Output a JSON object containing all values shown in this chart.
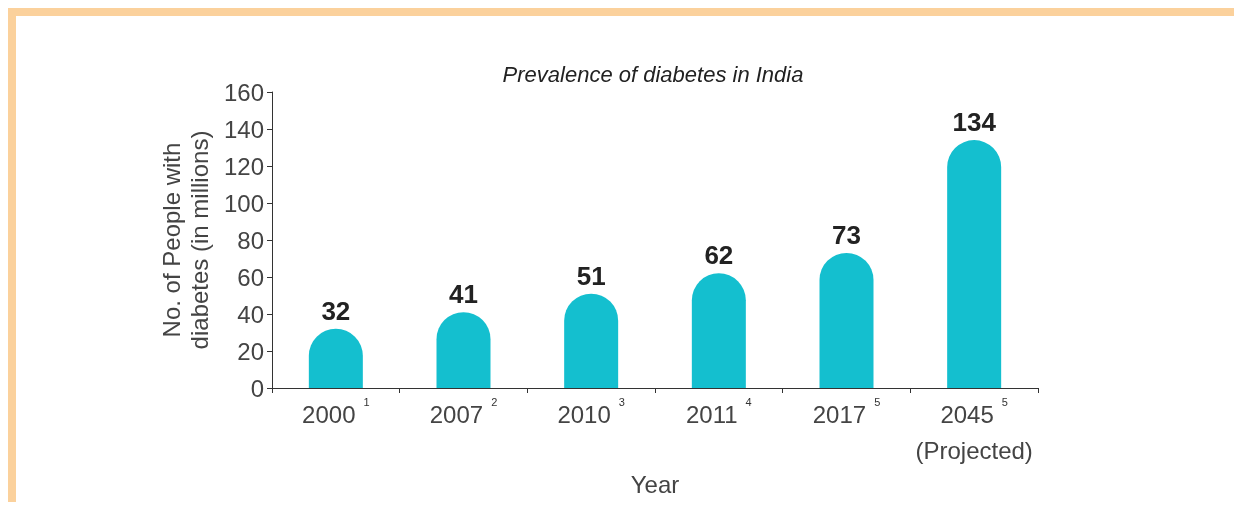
{
  "chart_data": {
    "type": "bar",
    "title": "Prevalence of diabetes in India",
    "categories": [
      "2000$^{1}$",
      "2007$^{2}$",
      "2010$^{3}$",
      "2011$^{4}$",
      "2017$^{5}$",
      "2045$^{5}$\n(Projected)"
    ],
    "values": [
      32,
      41,
      51,
      62,
      73,
      134
    ],
    "color": "#14bfcf",
    "xlabel": "Year",
    "ylabel": "No. of People with\ndiabetes (in millions)",
    "ylim": [
      0,
      160
    ],
    "yticks": [
      0,
      20,
      40,
      60,
      80,
      100,
      120,
      140,
      160
    ],
    "data_labels": true,
    "grid": false
  }
}
